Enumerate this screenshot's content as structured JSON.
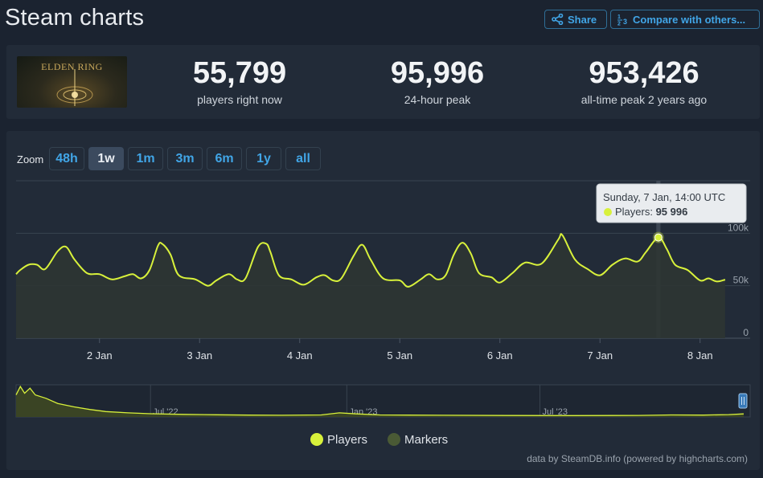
{
  "header": {
    "title": "Steam charts",
    "share_label": "Share",
    "compare_label": "Compare with others..."
  },
  "stats": {
    "logo_text": "ELDEN RING",
    "items": [
      {
        "value": "55,799",
        "label": "players right now"
      },
      {
        "value": "95,996",
        "label": "24-hour peak"
      },
      {
        "value": "953,426",
        "label": "all-time peak 2 years ago"
      }
    ]
  },
  "zoom": {
    "label": "Zoom",
    "options": [
      "48h",
      "1w",
      "1m",
      "3m",
      "6m",
      "1y",
      "all"
    ],
    "selected": "1w"
  },
  "tooltip": {
    "title": "Sunday, 7 Jan, 14:00 UTC",
    "series": "Players:",
    "value": "95 996"
  },
  "legend": [
    "Players",
    "Markers"
  ],
  "credits": "data by SteamDB.info (powered by highcharts.com)",
  "colors": {
    "players": "#d8f13b",
    "markers": "#4a5a35",
    "link": "#41a5e6"
  },
  "chart_data": {
    "type": "line",
    "title": "",
    "xlabel": "",
    "ylabel": "",
    "ylim": [
      0,
      150000
    ],
    "yticks": [
      "0",
      "50k",
      "100k"
    ],
    "ytick_values": [
      0,
      50000,
      100000
    ],
    "x_range": [
      "2024-01-01 04:00",
      "2024-01-08 12:00"
    ],
    "xticks": [
      "2 Jan",
      "3 Jan",
      "4 Jan",
      "5 Jan",
      "6 Jan",
      "7 Jan",
      "8 Jan"
    ],
    "xtick_dates": [
      "2024-01-02",
      "2024-01-03",
      "2024-01-04",
      "2024-01-05",
      "2024-01-06",
      "2024-01-07",
      "2024-01-08"
    ],
    "highlight": {
      "start": "2024-01-07 13:30",
      "end": "2024-01-07 14:30",
      "x": "2024-01-07 14:00",
      "y": 95996
    },
    "series": [
      {
        "name": "Players",
        "points": [
          [
            "2024-01-01 04:00",
            61000
          ],
          [
            "2024-01-01 05:00",
            65000
          ],
          [
            "2024-01-01 07:00",
            70000
          ],
          [
            "2024-01-01 09:00",
            70000
          ],
          [
            "2024-01-01 11:00",
            66000
          ],
          [
            "2024-01-01 14:00",
            83000
          ],
          [
            "2024-01-01 16:00",
            87000
          ],
          [
            "2024-01-01 18:00",
            75000
          ],
          [
            "2024-01-01 21:00",
            62000
          ],
          [
            "2024-01-02 00:00",
            61000
          ],
          [
            "2024-01-02 03:00",
            56000
          ],
          [
            "2024-01-02 06:00",
            59000
          ],
          [
            "2024-01-02 08:00",
            61000
          ],
          [
            "2024-01-02 10:00",
            57000
          ],
          [
            "2024-01-02 12:00",
            65000
          ],
          [
            "2024-01-02 14:00",
            88000
          ],
          [
            "2024-01-02 15:00",
            90000
          ],
          [
            "2024-01-02 17:00",
            80000
          ],
          [
            "2024-01-02 19:00",
            60000
          ],
          [
            "2024-01-02 23:00",
            56000
          ],
          [
            "2024-01-03 02:00",
            50000
          ],
          [
            "2024-01-03 04:00",
            55000
          ],
          [
            "2024-01-03 07:00",
            61000
          ],
          [
            "2024-01-03 09:00",
            56000
          ],
          [
            "2024-01-03 11:00",
            57000
          ],
          [
            "2024-01-03 14:00",
            87000
          ],
          [
            "2024-01-03 16:00",
            90000
          ],
          [
            "2024-01-03 17:00",
            82000
          ],
          [
            "2024-01-03 19:00",
            60000
          ],
          [
            "2024-01-03 22:00",
            56000
          ],
          [
            "2024-01-04 01:00",
            51000
          ],
          [
            "2024-01-04 04:00",
            58000
          ],
          [
            "2024-01-04 06:00",
            60000
          ],
          [
            "2024-01-04 08:00",
            55000
          ],
          [
            "2024-01-04 10:00",
            57000
          ],
          [
            "2024-01-04 13:00",
            79000
          ],
          [
            "2024-01-04 15:00",
            89000
          ],
          [
            "2024-01-04 17:00",
            75000
          ],
          [
            "2024-01-04 20:00",
            57000
          ],
          [
            "2024-01-05 00:00",
            55000
          ],
          [
            "2024-01-05 02:00",
            49000
          ],
          [
            "2024-01-05 05:00",
            56000
          ],
          [
            "2024-01-05 07:00",
            61000
          ],
          [
            "2024-01-05 09:00",
            56000
          ],
          [
            "2024-01-05 11:00",
            60000
          ],
          [
            "2024-01-05 13:00",
            80000
          ],
          [
            "2024-01-05 15:00",
            91000
          ],
          [
            "2024-01-05 17:00",
            81000
          ],
          [
            "2024-01-05 19:00",
            62000
          ],
          [
            "2024-01-05 22:00",
            58000
          ],
          [
            "2024-01-06 00:00",
            53000
          ],
          [
            "2024-01-06 03:00",
            62000
          ],
          [
            "2024-01-06 06:00",
            72000
          ],
          [
            "2024-01-06 10:00",
            71000
          ],
          [
            "2024-01-06 14:00",
            94000
          ],
          [
            "2024-01-06 15:00",
            98000
          ],
          [
            "2024-01-06 18:00",
            75000
          ],
          [
            "2024-01-06 21:00",
            66000
          ],
          [
            "2024-01-07 00:00",
            60000
          ],
          [
            "2024-01-07 03:00",
            70000
          ],
          [
            "2024-01-07 06:00",
            76000
          ],
          [
            "2024-01-07 09:00",
            73000
          ],
          [
            "2024-01-07 11:00",
            82000
          ],
          [
            "2024-01-07 14:00",
            95996
          ],
          [
            "2024-01-07 16:00",
            85000
          ],
          [
            "2024-01-07 18:00",
            70000
          ],
          [
            "2024-01-07 21:00",
            65000
          ],
          [
            "2024-01-08 00:00",
            55000
          ],
          [
            "2024-01-08 02:00",
            57000
          ],
          [
            "2024-01-08 04:00",
            54000
          ],
          [
            "2024-01-08 06:00",
            55800
          ]
        ]
      }
    ],
    "navigator": {
      "labels": [
        "Jul '22",
        "Jan '23",
        "Jul '23"
      ],
      "label_dates": [
        "2022-07-01",
        "2023-01-01",
        "2023-07-01"
      ],
      "range": [
        "2022-02-25",
        "2024-01-08"
      ],
      "values": [
        [
          "2022-02-25",
          650000
        ],
        [
          "2022-03-01",
          900000
        ],
        [
          "2022-03-05",
          700000
        ],
        [
          "2022-03-10",
          850000
        ],
        [
          "2022-03-15",
          650000
        ],
        [
          "2022-03-25",
          550000
        ],
        [
          "2022-04-05",
          400000
        ],
        [
          "2022-04-20",
          300000
        ],
        [
          "2022-05-05",
          220000
        ],
        [
          "2022-05-20",
          160000
        ],
        [
          "2022-06-10",
          120000
        ],
        [
          "2022-07-01",
          95000
        ],
        [
          "2022-08-01",
          75000
        ],
        [
          "2022-09-01",
          65000
        ],
        [
          "2022-10-01",
          55000
        ],
        [
          "2022-11-01",
          50000
        ],
        [
          "2022-12-08",
          60000
        ],
        [
          "2022-12-25",
          120000
        ],
        [
          "2023-01-10",
          90000
        ],
        [
          "2023-02-01",
          60000
        ],
        [
          "2023-04-01",
          50000
        ],
        [
          "2023-06-01",
          42000
        ],
        [
          "2023-08-01",
          40000
        ],
        [
          "2023-10-01",
          45000
        ],
        [
          "2023-11-01",
          60000
        ],
        [
          "2023-12-01",
          55000
        ],
        [
          "2023-12-25",
          70000
        ],
        [
          "2024-01-08",
          90000
        ]
      ]
    }
  }
}
